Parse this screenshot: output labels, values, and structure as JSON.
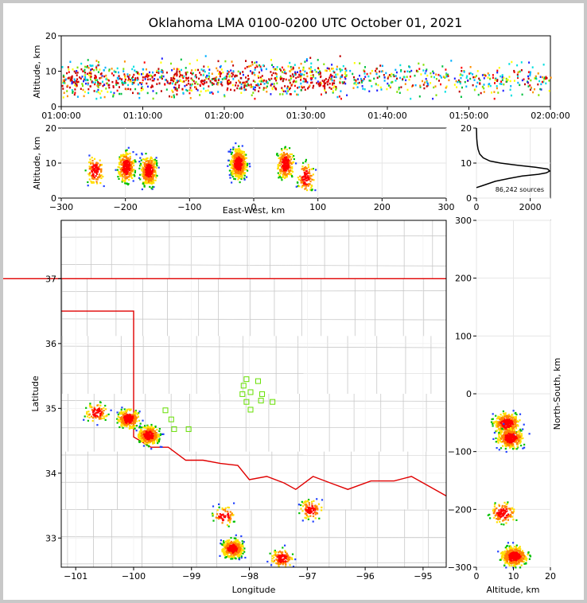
{
  "chart_data": {
    "type": "scatter",
    "title": "Oklahoma LMA 0100-0200 UTC October 01, 2021",
    "panels": {
      "time_height": {
        "ylabel": "Altitude, km",
        "ylim": [
          0,
          20
        ],
        "yticks": [
          0,
          10,
          20
        ],
        "xticklabels": [
          "01:00:00",
          "01:10:00",
          "01:20:00",
          "01:30:00",
          "01:40:00",
          "01:50:00",
          "02:00:00"
        ],
        "xlim_minutes": [
          0,
          60
        ]
      },
      "ew_height": {
        "xlabel": "East-West, km",
        "ylabel": "Altitude, km",
        "xlim": [
          -300,
          300
        ],
        "xticks": [
          -300,
          -200,
          -100,
          0,
          100,
          200,
          300
        ],
        "ylim": [
          0,
          20
        ],
        "yticks": [
          0,
          10,
          20
        ],
        "clusters": [
          {
            "x": -248,
            "z": 8,
            "n": 110
          },
          {
            "x": -200,
            "z": 9,
            "n": 280
          },
          {
            "x": -165,
            "z": 8,
            "n": 320
          },
          {
            "x": -25,
            "z": 10,
            "n": 520
          },
          {
            "x": 48,
            "z": 10,
            "n": 220
          },
          {
            "x": 80,
            "z": 6,
            "n": 110
          }
        ]
      },
      "histogram": {
        "xlim": [
          0,
          2750
        ],
        "xticks": [
          0,
          2000
        ],
        "ylim": [
          0,
          20
        ],
        "yticks": [
          0,
          10,
          20
        ],
        "annotation": "86,242 sources",
        "profile": [
          [
            0,
            3
          ],
          [
            200,
            3.5
          ],
          [
            700,
            4.8
          ],
          [
            1200,
            5.6
          ],
          [
            1700,
            6.3
          ],
          [
            2300,
            6.8
          ],
          [
            2600,
            7.2
          ],
          [
            2720,
            7.7
          ],
          [
            2650,
            8.3
          ],
          [
            2200,
            8.8
          ],
          [
            1500,
            9.4
          ],
          [
            900,
            10
          ],
          [
            500,
            10.6
          ],
          [
            250,
            11.5
          ],
          [
            120,
            12.6
          ],
          [
            60,
            14
          ],
          [
            30,
            15.5
          ],
          [
            12,
            17
          ],
          [
            5,
            18.5
          ],
          [
            0,
            20
          ]
        ]
      },
      "plan_view": {
        "xlabel": "Longitude",
        "ylabel": "Latitude",
        "xlim": [
          -101.25,
          -94.6
        ],
        "ylim": [
          32.55,
          37.9
        ],
        "xticks": [
          -101,
          -100,
          -99,
          -98,
          -97,
          -96,
          -95
        ],
        "yticks": [
          33,
          34,
          35,
          36,
          37
        ],
        "clusters": [
          {
            "lon": -100.65,
            "lat": 34.95,
            "n": 90
          },
          {
            "lon": -100.1,
            "lat": 34.85,
            "n": 260
          },
          {
            "lon": -99.75,
            "lat": 34.6,
            "n": 320
          },
          {
            "lon": -98.3,
            "lat": 32.85,
            "n": 380
          },
          {
            "lon": -97.45,
            "lat": 32.7,
            "n": 120
          },
          {
            "lon": -96.95,
            "lat": 33.45,
            "n": 100
          },
          {
            "lon": -98.45,
            "lat": 33.35,
            "n": 70
          }
        ],
        "stations": [
          [
            -98.05,
            35.45
          ],
          [
            -98.1,
            35.35
          ],
          [
            -97.85,
            35.42
          ],
          [
            -98.12,
            35.22
          ],
          [
            -97.98,
            35.25
          ],
          [
            -97.78,
            35.22
          ],
          [
            -98.05,
            35.1
          ],
          [
            -97.8,
            35.12
          ],
          [
            -97.6,
            35.1
          ],
          [
            -97.98,
            34.98
          ],
          [
            -99.45,
            34.97
          ],
          [
            -99.35,
            34.83
          ],
          [
            -99.3,
            34.68
          ],
          [
            -99.05,
            34.68
          ]
        ],
        "state_border": [
          [
            [
              -103,
              37
            ],
            [
              -94.6,
              37
            ]
          ],
          [
            [
              -101.25,
              36.5
            ],
            [
              -100,
              36.5
            ],
            [
              -100,
              34.56
            ],
            [
              -99.7,
              34.4
            ],
            [
              -99.4,
              34.4
            ],
            [
              -99.1,
              34.2
            ],
            [
              -98.8,
              34.2
            ],
            [
              -98.5,
              34.15
            ],
            [
              -98.2,
              34.12
            ],
            [
              -98.0,
              33.9
            ],
            [
              -97.7,
              33.95
            ],
            [
              -97.4,
              33.85
            ],
            [
              -97.2,
              33.75
            ],
            [
              -96.9,
              33.95
            ],
            [
              -96.6,
              33.85
            ],
            [
              -96.3,
              33.75
            ],
            [
              -95.9,
              33.88
            ],
            [
              -95.5,
              33.88
            ],
            [
              -95.2,
              33.95
            ],
            [
              -94.9,
              33.8
            ],
            [
              -94.6,
              33.65
            ]
          ]
        ]
      },
      "ns_height": {
        "xlabel": "Altitude, km",
        "ylabel": "North-South, km",
        "xlim": [
          0,
          20
        ],
        "xticks": [
          0,
          10,
          20
        ],
        "ylim": [
          -300,
          300
        ],
        "yticks": [
          -300,
          -200,
          -100,
          0,
          100,
          200,
          300
        ],
        "clusters": [
          {
            "z": 8,
            "y": -50,
            "n": 320
          },
          {
            "z": 9,
            "y": -75,
            "n": 320
          },
          {
            "z": 10,
            "y": -280,
            "n": 420
          },
          {
            "z": 7,
            "y": -205,
            "n": 120
          }
        ]
      }
    }
  }
}
